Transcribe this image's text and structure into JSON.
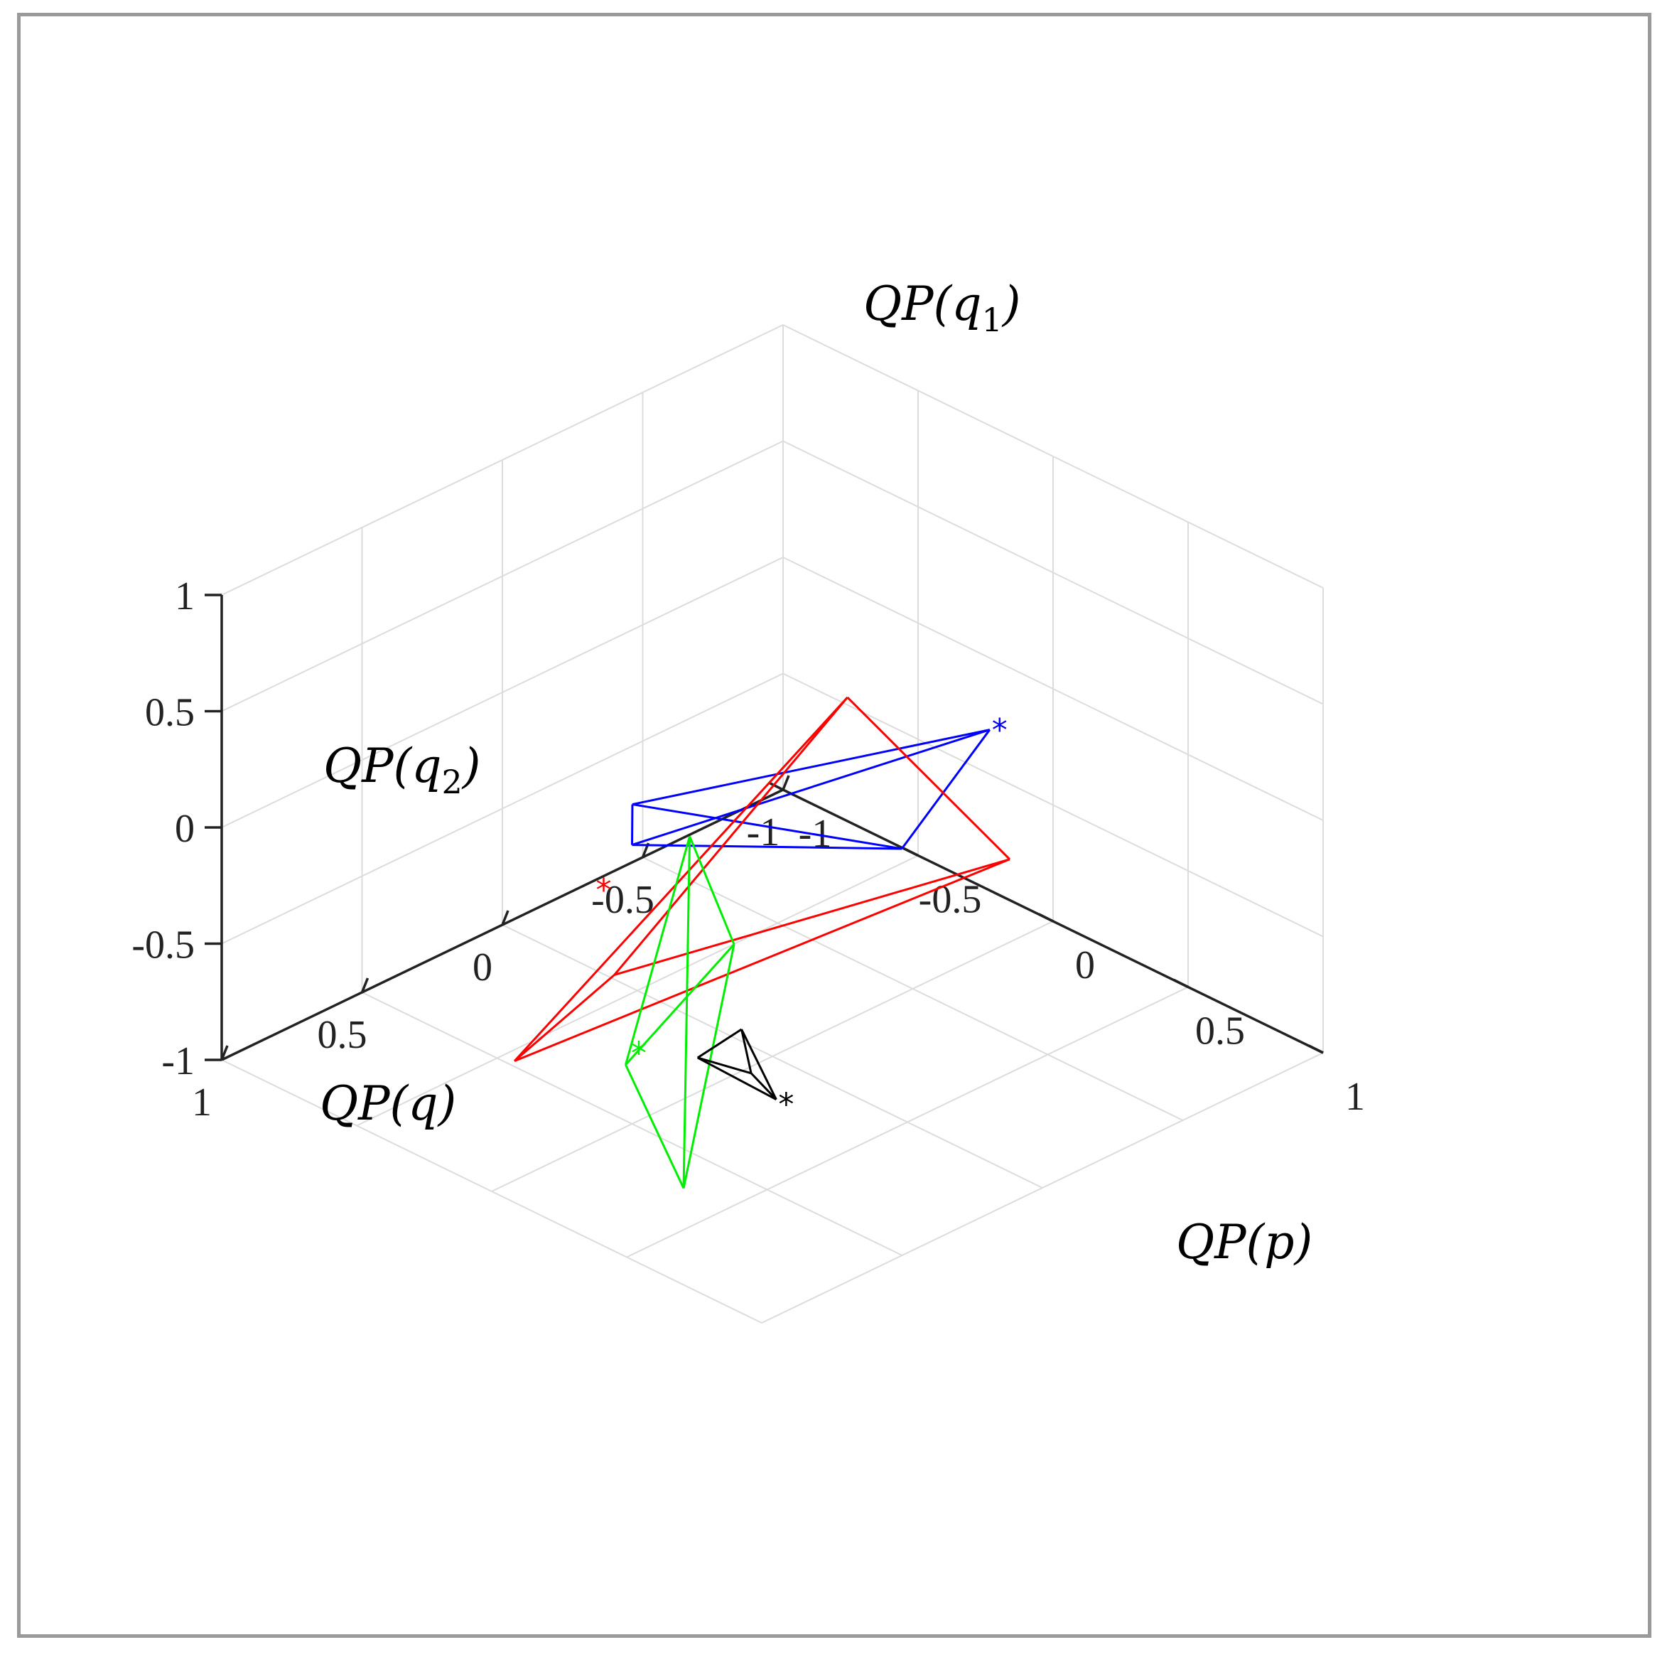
{
  "chart_data": {
    "type": "line",
    "subtype": "3d-wireframe",
    "title": "",
    "xlabel": "",
    "ylabel": "",
    "zlabel": "",
    "view": "isometric",
    "grid": true,
    "xlim": [
      -1,
      1
    ],
    "ylim": [
      -1,
      1
    ],
    "zlim": [
      -1,
      1
    ],
    "x_ticks": [
      "1",
      "0.5",
      "0",
      "-0.5",
      "-1"
    ],
    "y_ticks": [
      "-1",
      "-0.5",
      "0",
      "0.5",
      "1"
    ],
    "z_ticks": [
      "1",
      "0.5",
      "0",
      "-0.5",
      "-1"
    ],
    "series": [
      {
        "name": "QP(q_1)",
        "label": "QP(q",
        "sub": "1",
        "color": "#0000ff",
        "vertices": [
          [
            -0.12,
            0.68,
            0.72
          ],
          [
            0.27,
            0.76,
            0.48
          ],
          [
            0.47,
            -0.03,
            0.34
          ],
          [
            0.5,
            0.0,
            0.2
          ]
        ],
        "edges": [
          [
            0,
            1
          ],
          [
            0,
            2
          ],
          [
            0,
            3
          ],
          [
            1,
            2
          ],
          [
            1,
            3
          ],
          [
            2,
            3
          ]
        ],
        "marker": [
          -0.12,
          0.68,
          0.74
        ]
      },
      {
        "name": "QP(q_2)",
        "label": "QP(q",
        "sub": "2",
        "color": "#ff0000",
        "vertices": [
          [
            0.05,
            0.33,
            0.76
          ],
          [
            0.89,
            0.34,
            0.06
          ],
          [
            0.03,
            0.91,
            0.38
          ],
          [
            0.89,
            -0.03,
            -0.52
          ]
        ],
        "edges": [
          [
            0,
            1
          ],
          [
            0,
            2
          ],
          [
            0,
            3
          ],
          [
            1,
            2
          ],
          [
            1,
            3
          ],
          [
            2,
            3
          ]
        ],
        "marker": [
          0.81,
          0.18,
          0.31
        ]
      },
      {
        "name": "QP(q)",
        "label": "QP(q)",
        "sub": "",
        "color": "#00ee00",
        "vertices": [
          [
            0.85,
            0.34,
            -0.35
          ],
          [
            0.73,
            0.43,
            -0.9
          ],
          [
            0.05,
            -0.09,
            -0.54
          ],
          [
            0.16,
            -0.14,
            -0.04
          ]
        ],
        "edges": [
          [
            0,
            1
          ],
          [
            0,
            2
          ],
          [
            0,
            3
          ],
          [
            1,
            2
          ],
          [
            1,
            3
          ],
          [
            2,
            3
          ]
        ],
        "marker": [
          0.8,
          0.3,
          -0.33
        ]
      },
      {
        "name": "QP(p)",
        "label": "QP(p)",
        "sub": "",
        "color": "#000000",
        "vertices": [
          [
            0.4,
            0.43,
            -0.71
          ],
          [
            0.43,
            0.17,
            -0.66
          ],
          [
            0.11,
            0.0,
            -0.82
          ],
          [
            0.22,
            0.15,
            -0.86
          ]
        ],
        "edges": [
          [
            0,
            1
          ],
          [
            0,
            2
          ],
          [
            0,
            3
          ],
          [
            1,
            2
          ],
          [
            1,
            3
          ],
          [
            2,
            3
          ]
        ],
        "marker": [
          0.4,
          0.43,
          -0.71
        ]
      }
    ]
  }
}
